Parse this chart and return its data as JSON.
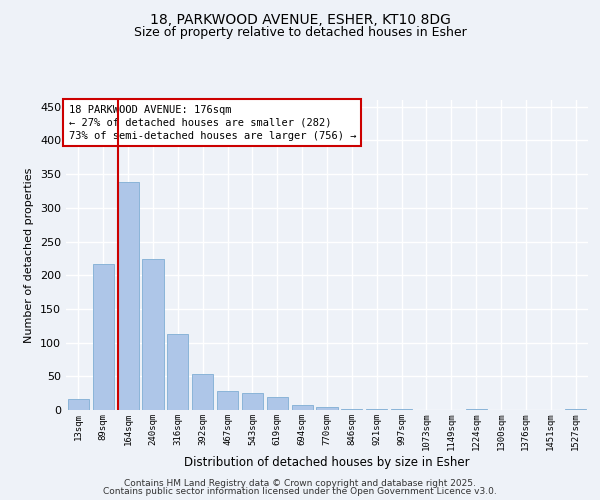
{
  "title1": "18, PARKWOOD AVENUE, ESHER, KT10 8DG",
  "title2": "Size of property relative to detached houses in Esher",
  "xlabel": "Distribution of detached houses by size in Esher",
  "ylabel": "Number of detached properties",
  "categories": [
    "13sqm",
    "89sqm",
    "164sqm",
    "240sqm",
    "316sqm",
    "392sqm",
    "467sqm",
    "543sqm",
    "619sqm",
    "694sqm",
    "770sqm",
    "846sqm",
    "921sqm",
    "997sqm",
    "1073sqm",
    "1149sqm",
    "1224sqm",
    "1300sqm",
    "1376sqm",
    "1451sqm",
    "1527sqm"
  ],
  "values": [
    16,
    216,
    339,
    224,
    113,
    54,
    28,
    25,
    19,
    7,
    5,
    2,
    1,
    1,
    0,
    0,
    1,
    0,
    0,
    0,
    2
  ],
  "bar_color": "#aec6e8",
  "bar_edge_color": "#8ab4d8",
  "vline_x_index": 2,
  "vline_color": "#cc0000",
  "annotation_line1": "18 PARKWOOD AVENUE: 176sqm",
  "annotation_line2": "← 27% of detached houses are smaller (282)",
  "annotation_line3": "73% of semi-detached houses are larger (756) →",
  "annotation_box_color": "#ffffff",
  "annotation_box_edge": "#cc0000",
  "ylim": [
    0,
    460
  ],
  "yticks": [
    0,
    50,
    100,
    150,
    200,
    250,
    300,
    350,
    400,
    450
  ],
  "background_color": "#eef2f8",
  "grid_color": "#ffffff",
  "footer1": "Contains HM Land Registry data © Crown copyright and database right 2025.",
  "footer2": "Contains public sector information licensed under the Open Government Licence v3.0."
}
